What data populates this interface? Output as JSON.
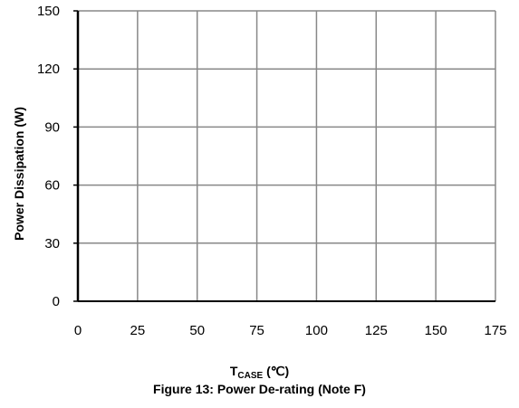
{
  "chart_data": {
    "type": "line",
    "title": "",
    "ylabel": "Power Dissipation (W)",
    "xlabel": {
      "main": "T",
      "sub": "CASE",
      "unit": "(℃)"
    },
    "caption": "Figure 13: Power De-rating (Note F)",
    "xlim": [
      0,
      175
    ],
    "ylim": [
      0,
      150
    ],
    "x_ticks": [
      0,
      25,
      50,
      75,
      100,
      125,
      150,
      175
    ],
    "y_ticks": [
      0,
      30,
      60,
      90,
      120,
      150
    ],
    "grid": true,
    "series": [],
    "colors": {
      "grid": "#888888",
      "axis": "#000000"
    }
  }
}
